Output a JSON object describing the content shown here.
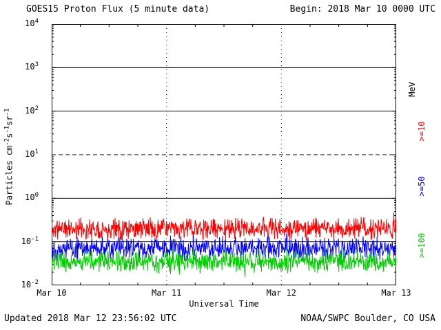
{
  "header": {
    "title": "GOES15 Proton Flux (5 minute data)",
    "begin": "Begin: 2018 Mar 10 0000 UTC"
  },
  "footer": {
    "updated": "Updated 2018 Mar 12 23:56:02 UTC",
    "source": "NOAA/SWPC Boulder, CO USA"
  },
  "chart_data": {
    "type": "line",
    "title": "GOES15 Proton Flux (5 minute data)",
    "xlabel": "Universal Time",
    "ylabel_segments": [
      {
        "text": "Particles cm"
      },
      {
        "sup": "-2"
      },
      {
        "text": "s"
      },
      {
        "sup": "-1"
      },
      {
        "text": "sr"
      },
      {
        "sup": "-1"
      }
    ],
    "x_ticks": [
      "Mar 10",
      "Mar 11",
      "Mar 12",
      "Mar 13"
    ],
    "y_tick_exponents": [
      4,
      3,
      2,
      1,
      0,
      -1,
      -2
    ],
    "ylim_log10": [
      -2,
      4
    ],
    "x_range_days": 3,
    "points_per_day": 288,
    "grid": {
      "solid_hlines_log10": [
        3,
        2,
        0,
        -1
      ],
      "dashed_hlines_log10": [
        1
      ],
      "dotted_vlines_day": [
        1,
        2
      ]
    },
    "right_axis_labels": [
      {
        "label": "MeV",
        "color": "#000000"
      },
      {
        "label": ">=10",
        "color": "#ff0000"
      },
      {
        "label": ">=50",
        "color": "#0000ff"
      },
      {
        "label": ">=100",
        "color": "#00cc00"
      }
    ],
    "series": [
      {
        "name": ">=10 MeV",
        "color": "#ff0000",
        "mean_log10_flux": -0.7,
        "noise_amplitude_log10": 0.28,
        "approx_flux_range": [
          0.09,
          0.4
        ]
      },
      {
        "name": ">=50 MeV",
        "color": "#0000ff",
        "mean_log10_flux": -1.15,
        "noise_amplitude_log10": 0.3,
        "approx_flux_range": [
          0.04,
          0.15
        ]
      },
      {
        "name": ">=100 MeV",
        "color": "#00cc00",
        "mean_log10_flux": -1.45,
        "noise_amplitude_log10": 0.3,
        "approx_flux_range": [
          0.02,
          0.09
        ]
      }
    ]
  }
}
